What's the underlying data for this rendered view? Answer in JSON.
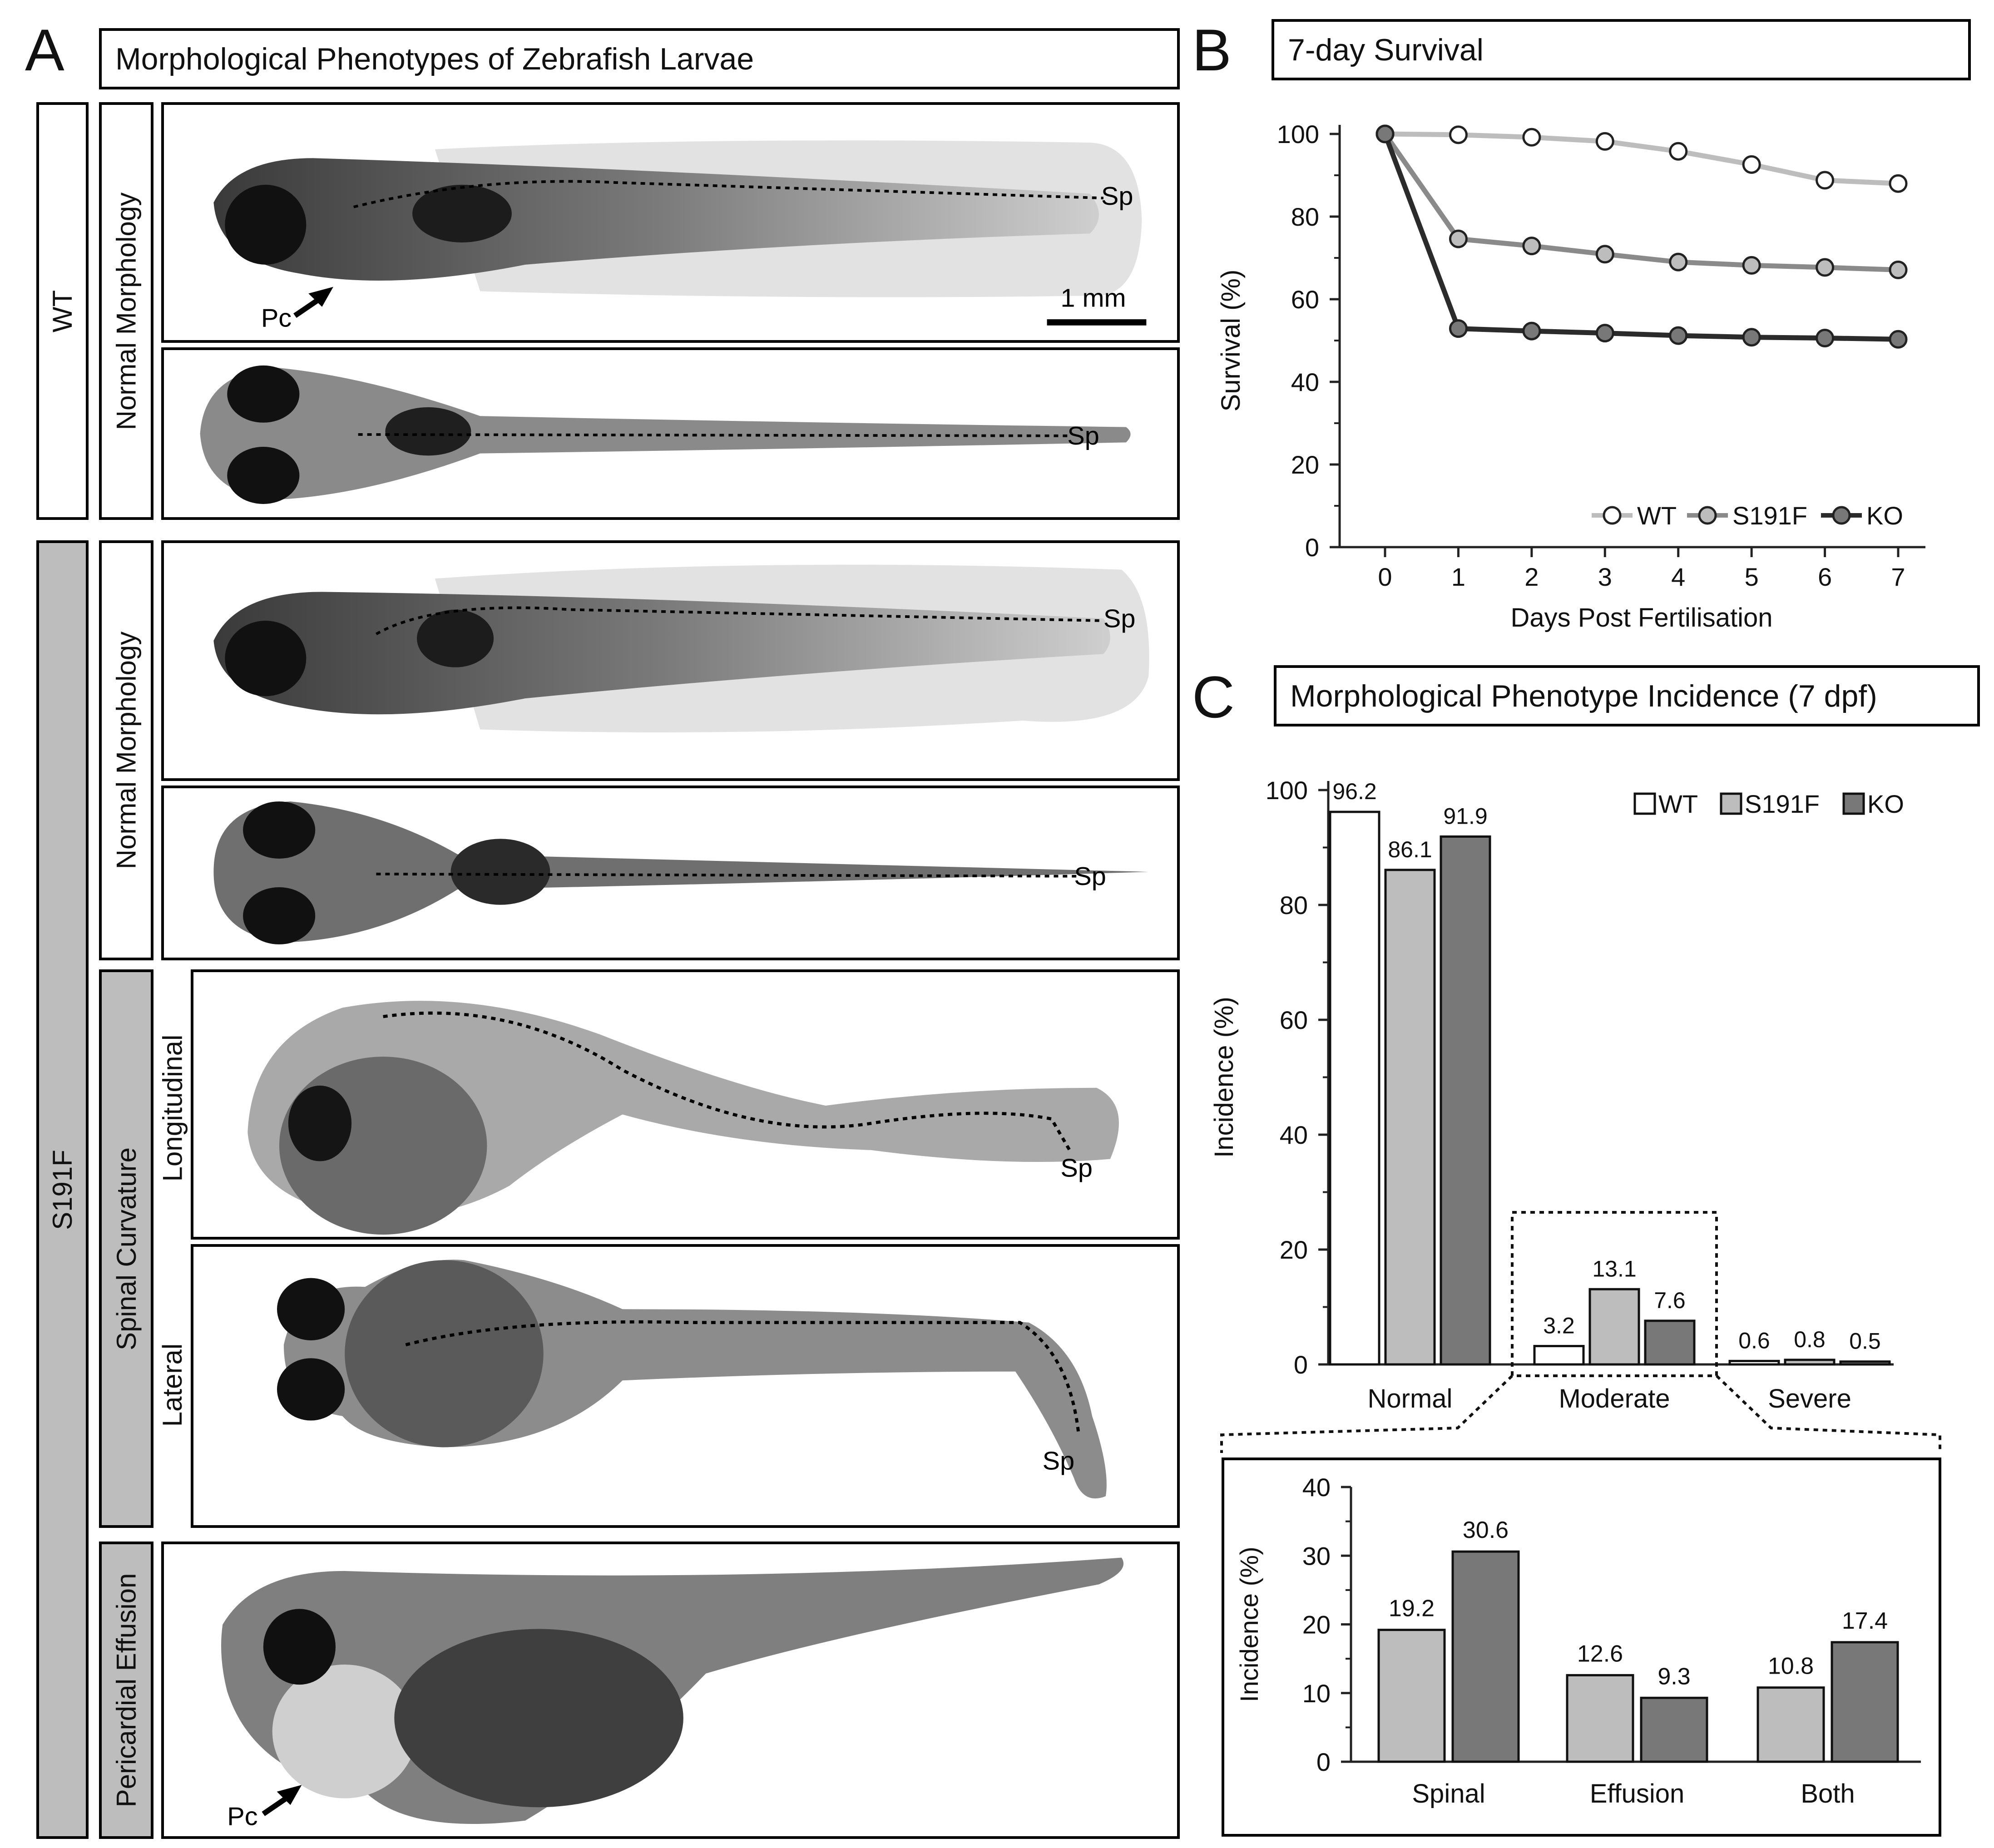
{
  "panel_a": {
    "letter": "A",
    "title": "Morphological Phenotypes of Zebrafish Larvae",
    "groups": {
      "wt": "WT",
      "s191f": "S191F"
    },
    "phenotypes": {
      "normal_wt": "Normal Morphology",
      "normal_s191f": "Normal Morphology",
      "spinal": "Spinal Curvature",
      "effusion": "Pericardial Effusion"
    },
    "views": {
      "longitudinal": "Longitudinal",
      "lateral": "Lateral"
    },
    "annotations": {
      "sp": "Sp",
      "pc": "Pc",
      "scale_bar": "1 mm"
    }
  },
  "panel_b": {
    "letter": "B",
    "title": "7-day Survival"
  },
  "panel_c": {
    "letter": "C",
    "title": "Morphological Phenotype Incidence (7 dpf)"
  },
  "colors": {
    "wt": "#ffffff",
    "s191f": "#bdbdbd",
    "ko": "#787878",
    "line_wt": "#bdbdbd",
    "line_s191f": "#8a8a8a",
    "line_ko": "#2b2b2b"
  },
  "chart_data": [
    {
      "id": "survival",
      "type": "line",
      "title": "7-day Survival",
      "xlabel": "Days Post Fertilisation",
      "ylabel": "Survival (%)",
      "x": [
        0,
        1,
        2,
        3,
        4,
        5,
        6,
        7
      ],
      "xticks": [
        "0",
        "1",
        "2",
        "3",
        "4",
        "5",
        "6",
        "7"
      ],
      "yticks": [
        "0",
        "20",
        "40",
        "60",
        "80",
        "100"
      ],
      "ylim": [
        0,
        100
      ],
      "legend": "bottom-right",
      "series": [
        {
          "name": "WT",
          "values": [
            100,
            99.8,
            99.2,
            98.2,
            95.8,
            92.6,
            88.8,
            88.0
          ]
        },
        {
          "name": "S191F",
          "values": [
            100,
            74.6,
            72.9,
            70.9,
            69.0,
            68.2,
            67.7,
            67.1
          ]
        },
        {
          "name": "KO",
          "values": [
            100,
            52.9,
            52.3,
            51.8,
            51.2,
            50.8,
            50.6,
            50.3
          ]
        }
      ]
    },
    {
      "id": "incidence",
      "type": "bar",
      "title": "Morphological Phenotype Incidence (7 dpf)",
      "ylabel": "Incidence (%)",
      "categories": [
        "Normal",
        "Moderate",
        "Severe"
      ],
      "yticks": [
        "0",
        "20",
        "40",
        "60",
        "80",
        "100"
      ],
      "ylim": [
        0,
        100
      ],
      "legend": "top-right",
      "series": [
        {
          "name": "WT",
          "values": [
            96.2,
            3.2,
            0.6
          ],
          "labels": [
            "96.2",
            "3.2",
            "0.6"
          ]
        },
        {
          "name": "S191F",
          "values": [
            86.1,
            13.1,
            0.8
          ],
          "labels": [
            "86.1",
            "13.1",
            "0.8"
          ]
        },
        {
          "name": "KO",
          "values": [
            91.9,
            7.6,
            0.5
          ],
          "labels": [
            "91.9",
            "7.6",
            "0.5"
          ]
        }
      ]
    },
    {
      "id": "moderate_breakdown",
      "type": "bar",
      "ylabel": "Incidence (%)",
      "categories": [
        "Spinal",
        "Effusion",
        "Both"
      ],
      "yticks": [
        "0",
        "10",
        "20",
        "30",
        "40"
      ],
      "ylim": [
        0,
        40
      ],
      "series": [
        {
          "name": "S191F",
          "values": [
            19.2,
            12.6,
            10.8
          ],
          "labels": [
            "19.2",
            "12.6",
            "10.8"
          ]
        },
        {
          "name": "KO",
          "values": [
            30.6,
            9.3,
            17.4
          ],
          "labels": [
            "30.6",
            "9.3",
            "17.4"
          ]
        }
      ]
    }
  ]
}
